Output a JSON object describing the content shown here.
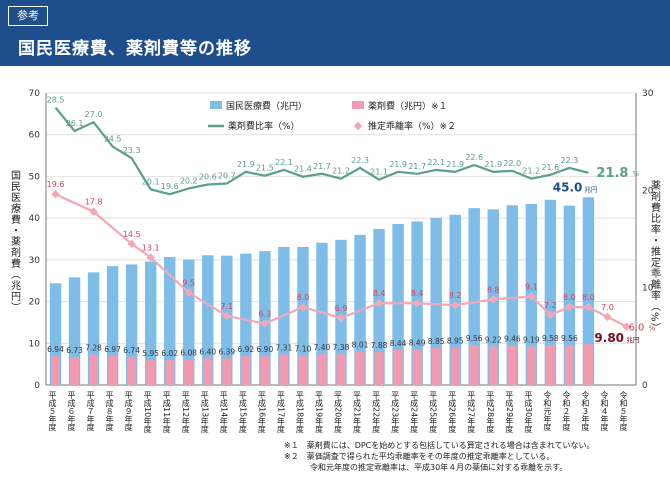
{
  "header": {
    "badge": "参考",
    "title": "国民医療費、薬剤費等の推移"
  },
  "legend": {
    "medical": "国民医療費（兆円）",
    "drug": "薬剤費（兆円）※１",
    "ratio": "薬剤費比率（%）",
    "divergence": "推定乖離率（%）※２"
  },
  "axes": {
    "left_label": "国民医療費・薬剤費（兆円）",
    "right_label": "薬剤費比率・推定乖離率（%）",
    "left_ticks": [
      "0",
      "10",
      "20",
      "30",
      "40",
      "50",
      "60",
      "70"
    ],
    "right_ticks": [
      "0",
      "10",
      "20",
      "30"
    ]
  },
  "notes": [
    "※１　薬剤費には、DPCを始めとする包括している算定される場合は含まれていない。",
    "※２　薬価調査で得られた平均乖離率をその年度の推定乖離率としている。",
    "令和元年度の推定乖離率は、平成30年４月の薬価に対する乖離を示す。"
  ],
  "colors": {
    "medical": "#7fbde9",
    "drug": "#f39ab0",
    "ratio": "#5a9f8f",
    "divergence": "#f2a8b7",
    "header": "#1f4e8c",
    "accent": "#1f4e8c",
    "drug_label": "#7a0a28"
  },
  "chart_data": {
    "type": "bar",
    "categories": [
      "平成５年度",
      "平成６年度",
      "平成７年度",
      "平成８年度",
      "平成９年度",
      "平成10年度",
      "平成11年度",
      "平成12年度",
      "平成13年度",
      "平成14年度",
      "平成15年度",
      "平成16年度",
      "平成17年度",
      "平成18年度",
      "平成19年度",
      "平成20年度",
      "平成21年度",
      "平成22年度",
      "平成23年度",
      "平成24年度",
      "平成25年度",
      "平成26年度",
      "平成27年度",
      "平成28年度",
      "平成29年度",
      "平成30年度",
      "令和元年度",
      "令和２年度",
      "令和３年度",
      "令和４年度",
      "令和５年度"
    ],
    "series": [
      {
        "name": "国民医療費（兆円）",
        "axis": "left",
        "type": "bar",
        "values": [
          24.4,
          25.8,
          27.0,
          28.5,
          28.9,
          29.6,
          30.7,
          30.1,
          31.1,
          31.0,
          31.5,
          32.1,
          33.1,
          33.1,
          34.1,
          34.8,
          36.0,
          37.4,
          38.6,
          39.2,
          40.1,
          40.8,
          42.4,
          42.1,
          43.1,
          43.4,
          44.4,
          43.0,
          45.0,
          null,
          null
        ],
        "labels": [
          null,
          null,
          null,
          null,
          null,
          null,
          null,
          null,
          null,
          null,
          null,
          null,
          null,
          null,
          null,
          null,
          null,
          null,
          null,
          null,
          null,
          null,
          null,
          null,
          null,
          null,
          null,
          null,
          "45.0",
          null,
          null
        ]
      },
      {
        "name": "薬剤費（兆円）※１",
        "axis": "left",
        "type": "bar",
        "values": [
          6.94,
          6.73,
          7.28,
          6.97,
          6.74,
          5.95,
          6.02,
          6.08,
          6.4,
          6.39,
          6.92,
          6.9,
          7.31,
          7.1,
          7.4,
          7.38,
          8.01,
          7.88,
          8.44,
          8.49,
          8.85,
          8.95,
          9.56,
          9.22,
          9.46,
          9.19,
          9.58,
          9.56,
          9.8,
          null,
          null
        ],
        "labels": [
          "6.94",
          "6.73",
          "7.28",
          "6.97",
          "6.74",
          "5.95",
          "6.02",
          "6.08",
          "6.40",
          "6.39",
          "6.92",
          "6.90",
          "7.31",
          "7.10",
          "7.40",
          "7.38",
          "8.01",
          "7.88",
          "8.44",
          "8.49",
          "8.85",
          "8.95",
          "9.56",
          "9.22",
          "9.46",
          "9.19",
          "9.58",
          "9.56",
          "9.80",
          null,
          null
        ]
      },
      {
        "name": "薬剤費比率（%）",
        "axis": "right",
        "type": "line",
        "values": [
          28.5,
          26.1,
          27.0,
          24.5,
          23.3,
          20.1,
          19.6,
          20.2,
          20.6,
          20.7,
          21.9,
          21.5,
          22.1,
          21.4,
          21.7,
          21.2,
          22.3,
          21.1,
          21.9,
          21.7,
          22.1,
          21.9,
          22.6,
          21.9,
          22.0,
          21.2,
          21.6,
          22.3,
          21.8,
          null,
          null
        ],
        "labels": [
          "28.5",
          "26.1",
          "27.0",
          "24.5",
          "23.3",
          "20.1",
          "19.6",
          "20.2",
          "20.6",
          "20.7",
          "21.9",
          "21.5",
          "22.1",
          "21.4",
          "21.7",
          "21.2",
          "22.3",
          "21.1",
          "21.9",
          "21.7",
          "22.1",
          "21.9",
          "22.6",
          "21.9",
          "22.0",
          "21.2",
          "21.6",
          "22.3",
          "21.8",
          null,
          null
        ]
      },
      {
        "name": "推定乖離率（%）※２",
        "axis": "right",
        "type": "line",
        "values": [
          19.6,
          null,
          17.8,
          null,
          14.5,
          13.1,
          null,
          9.5,
          null,
          7.1,
          null,
          6.3,
          null,
          8.0,
          null,
          6.9,
          null,
          8.4,
          null,
          8.4,
          null,
          8.2,
          null,
          8.8,
          null,
          9.1,
          7.2,
          8.0,
          8.0,
          7.0,
          6.0
        ],
        "labels": [
          "19.6",
          null,
          "17.8",
          null,
          "14.5",
          "13.1",
          null,
          "9.5",
          null,
          "7.1",
          null,
          "6.3",
          null,
          "8.0",
          null,
          "6.9",
          null,
          "8.4",
          null,
          "8.4",
          null,
          "8.2",
          null,
          "8.8",
          null,
          "9.1",
          "7.2",
          "8.0",
          "8.0",
          "7.0",
          "6.0"
        ]
      }
    ],
    "end_labels": {
      "ratio_unit": "%",
      "medical_unit": "兆円",
      "drug_unit": "兆円",
      "divergence_unit": "%"
    },
    "xlabel": "",
    "ylabel": "国民医療費・薬剤費（兆円）",
    "y2label": "薬剤費比率・推定乖離率（%）",
    "ylim": [
      0,
      70
    ],
    "y2lim": [
      0,
      30
    ],
    "grid": true
  }
}
